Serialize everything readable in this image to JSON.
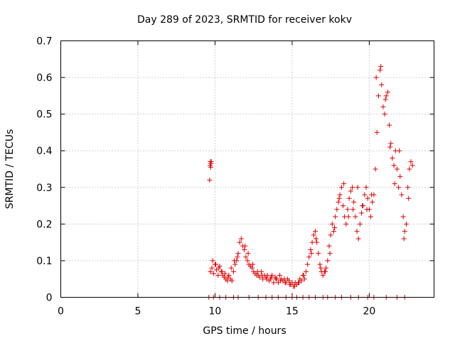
{
  "chart_data": {
    "type": "scatter",
    "title": "Day 289 of 2023, SRMTID for receiver kokv",
    "xlabel": "GPS time / hours",
    "ylabel": "SRMTID / TECUs",
    "xlim": [
      0,
      24.2
    ],
    "ylim": [
      0,
      0.7
    ],
    "xticks": [
      0,
      5,
      10,
      15,
      20
    ],
    "xtick_labels": [
      "0",
      "5",
      "10",
      "15",
      "20"
    ],
    "yticks": [
      0,
      0.1,
      0.2,
      0.3,
      0.4,
      0.5,
      0.6,
      0.7
    ],
    "ytick_labels": [
      "0",
      "0.1",
      "0.2",
      "0.3",
      "0.4",
      "0.5",
      "0.6",
      "0.7"
    ],
    "grid": true,
    "marker": "+",
    "series": [
      {
        "name": "SRMTID",
        "color": "#e00000",
        "x": [
          9.65,
          9.68,
          9.7,
          9.72,
          9.74,
          9.76,
          9.7,
          9.8,
          9.9,
          10.0,
          10.1,
          10.2,
          10.3,
          10.4,
          10.5,
          10.6,
          10.7,
          10.8,
          10.9,
          11.0,
          11.1,
          11.2,
          11.3,
          11.4,
          11.5,
          11.6,
          11.7,
          11.8,
          11.9,
          12.0,
          12.1,
          12.2,
          12.3,
          12.4,
          12.5,
          12.6,
          12.7,
          12.8,
          12.9,
          13.0,
          13.1,
          13.2,
          13.3,
          13.4,
          13.5,
          13.6,
          13.7,
          13.8,
          13.9,
          14.0,
          14.1,
          14.2,
          14.3,
          14.4,
          14.5,
          14.6,
          14.7,
          14.8,
          14.9,
          15.0,
          15.1,
          15.2,
          15.3,
          15.4,
          15.5,
          15.6,
          15.7,
          15.8,
          15.9,
          16.0,
          16.1,
          16.2,
          16.3,
          16.4,
          16.5,
          16.6,
          16.7,
          16.8,
          16.9,
          17.0,
          17.1,
          17.2,
          17.3,
          17.4,
          17.5,
          17.6,
          17.7,
          17.8,
          17.9,
          18.0,
          18.1,
          18.2,
          18.3,
          18.4,
          18.5,
          18.6,
          18.7,
          18.8,
          18.9,
          19.0,
          19.1,
          19.2,
          19.3,
          19.4,
          19.5,
          19.6,
          19.7,
          19.8,
          19.9,
          20.0,
          20.1,
          20.2,
          20.3,
          20.4,
          20.5,
          20.6,
          20.7,
          20.8,
          20.9,
          21.0,
          21.1,
          21.2,
          21.3,
          21.4,
          21.5,
          21.6,
          21.7,
          21.8,
          21.9,
          22.0,
          22.1,
          22.2,
          22.3,
          22.4,
          22.5,
          22.6,
          22.7,
          22.8,
          9.85,
          10.05,
          10.25,
          10.45,
          10.65,
          10.85,
          11.05,
          11.25,
          11.45,
          11.95,
          12.15,
          12.45,
          12.75,
          13.05,
          13.35,
          13.65,
          13.95,
          14.25,
          14.55,
          14.85,
          15.15,
          15.45,
          15.75,
          16.25,
          16.55,
          16.85,
          17.15,
          17.45,
          17.75,
          18.05,
          18.35,
          18.65,
          18.95,
          19.25,
          19.55,
          19.85,
          20.15,
          20.45,
          20.75,
          21.05,
          21.35,
          21.65,
          21.95,
          22.25,
          22.55,
          9.6,
          9.9,
          10.3,
          10.7,
          11.2,
          11.5,
          12.2,
          12.8,
          13.3,
          13.7,
          14.1,
          14.6,
          15.0,
          15.3,
          15.7,
          16.1,
          16.5,
          17.0,
          17.3,
          17.8,
          18.2,
          18.8,
          19.3,
          19.9,
          20.3,
          21.1,
          21.8,
          22.3
        ],
        "y": [
          0.32,
          0.36,
          0.37,
          0.355,
          0.365,
          0.37,
          0.07,
          0.08,
          0.065,
          0.09,
          0.075,
          0.06,
          0.085,
          0.07,
          0.06,
          0.055,
          0.05,
          0.045,
          0.06,
          0.05,
          0.045,
          0.07,
          0.09,
          0.1,
          0.12,
          0.15,
          0.16,
          0.14,
          0.13,
          0.11,
          0.1,
          0.09,
          0.085,
          0.08,
          0.07,
          0.065,
          0.06,
          0.06,
          0.055,
          0.07,
          0.05,
          0.06,
          0.055,
          0.06,
          0.045,
          0.05,
          0.06,
          0.04,
          0.055,
          0.05,
          0.04,
          0.06,
          0.05,
          0.045,
          0.05,
          0.04,
          0.05,
          0.045,
          0.035,
          0.04,
          0.03,
          0.04,
          0.035,
          0.04,
          0.05,
          0.045,
          0.06,
          0.05,
          0.07,
          0.09,
          0.11,
          0.13,
          0.15,
          0.17,
          0.18,
          0.15,
          0.12,
          0.09,
          0.07,
          0.06,
          0.07,
          0.08,
          0.1,
          0.14,
          0.17,
          0.2,
          0.18,
          0.22,
          0.24,
          0.26,
          0.28,
          0.3,
          0.25,
          0.22,
          0.2,
          0.24,
          0.27,
          0.29,
          0.3,
          0.26,
          0.22,
          0.18,
          0.16,
          0.2,
          0.23,
          0.25,
          0.28,
          0.3,
          0.27,
          0.24,
          0.22,
          0.26,
          0.28,
          0.35,
          0.45,
          0.55,
          0.62,
          0.58,
          0.52,
          0.5,
          0.55,
          0.56,
          0.47,
          0.42,
          0.38,
          0.36,
          0.4,
          0.35,
          0.3,
          0.33,
          0.28,
          0.22,
          0.18,
          0.2,
          0.3,
          0.35,
          0.37,
          0.36,
          0.1,
          0.09,
          0.08,
          0.07,
          0.065,
          0.055,
          0.08,
          0.1,
          0.11,
          0.14,
          0.12,
          0.09,
          0.07,
          0.06,
          0.05,
          0.055,
          0.05,
          0.045,
          0.04,
          0.035,
          0.03,
          0.04,
          0.06,
          0.12,
          0.16,
          0.08,
          0.07,
          0.12,
          0.19,
          0.27,
          0.31,
          0.22,
          0.24,
          0.3,
          0.25,
          0.24,
          0.28,
          0.6,
          0.63,
          0.54,
          0.41,
          0.31,
          0.4,
          0.16,
          0.27,
          0.0,
          0.0,
          0.0,
          0.0,
          0.0,
          0.0,
          0.0,
          0.0,
          0.0,
          0.0,
          0.0,
          0.0,
          0.0,
          0.0,
          0.0,
          0.0,
          0.0,
          0.0,
          0.0,
          0.0,
          0.0,
          0.0,
          0.0,
          0.0,
          0.0,
          0.0,
          0.0,
          0.0
        ]
      }
    ]
  }
}
